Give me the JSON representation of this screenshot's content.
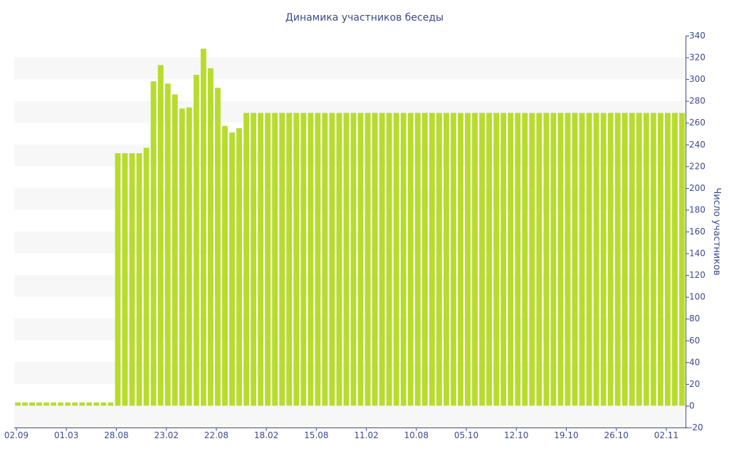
{
  "chart_data": {
    "type": "bar",
    "title": "Динамика участников беседы",
    "ylabel": "Число участников",
    "y_axis_position": "right",
    "ylim": [
      -20,
      340
    ],
    "y_ticks": [
      -20,
      0,
      20,
      40,
      60,
      80,
      100,
      120,
      140,
      160,
      180,
      200,
      220,
      240,
      260,
      280,
      300,
      320,
      340
    ],
    "x_tick_labels": [
      "02.09",
      "01.03",
      "28.08",
      "23.02",
      "22.08",
      "18.02",
      "15.08",
      "11.02",
      "10.08",
      "05.10",
      "12.10",
      "19.10",
      "26.10",
      "02.11"
    ],
    "x_tick_bar_index": [
      0,
      7,
      14,
      21,
      28,
      35,
      42,
      49,
      56,
      63,
      70,
      77,
      84,
      91
    ],
    "grid": "alternating horizontal bands",
    "bar_color": "#b7dc2c",
    "band_color": "#f7f7f7",
    "text_color": "#3b4a8f",
    "values": [
      3,
      3,
      3,
      3,
      3,
      3,
      3,
      3,
      3,
      3,
      3,
      3,
      3,
      3,
      232,
      232,
      232,
      232,
      237,
      298,
      313,
      296,
      286,
      273,
      274,
      304,
      328,
      310,
      292,
      257,
      251,
      255,
      269,
      269,
      269,
      269,
      269,
      269,
      269,
      269,
      269,
      269,
      269,
      269,
      269,
      269,
      269,
      269,
      269,
      269,
      269,
      269,
      269,
      269,
      269,
      269,
      269,
      269,
      269,
      269,
      269,
      269,
      269,
      269,
      269,
      269,
      269,
      269,
      269,
      269,
      269,
      269,
      269,
      269,
      269,
      269,
      269,
      269,
      269,
      269,
      269,
      269,
      269,
      269,
      269,
      269,
      269,
      269,
      269,
      269,
      269,
      269,
      269,
      269
    ]
  }
}
